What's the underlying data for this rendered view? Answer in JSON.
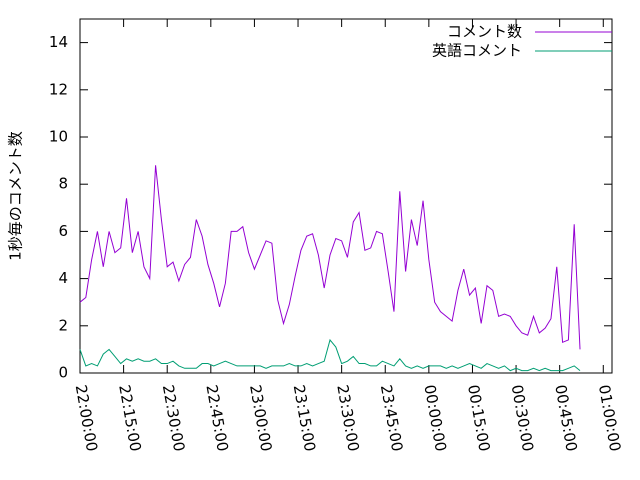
{
  "chart_data": {
    "type": "line",
    "y_label": "1秒毎のコメント数",
    "x": [
      0,
      2,
      4,
      6,
      8,
      10,
      12,
      14,
      16,
      18,
      20,
      22,
      24,
      26,
      28,
      30,
      32,
      34,
      36,
      38,
      40,
      42,
      44,
      46,
      48,
      50,
      52,
      54,
      56,
      58,
      60,
      62,
      64,
      66,
      68,
      70,
      72,
      74,
      76,
      78,
      80,
      82,
      84,
      86,
      88,
      90,
      92,
      94,
      96,
      98,
      100,
      102,
      104,
      106,
      108,
      110,
      112,
      114,
      116,
      118,
      120,
      122,
      124,
      126,
      128,
      130,
      132,
      134,
      136,
      138,
      140,
      142,
      144,
      146,
      148,
      150,
      152,
      154,
      156,
      158,
      160,
      162,
      164,
      166,
      168,
      170,
      172
    ],
    "series": [
      {
        "name": "コメント数",
        "color": "#9400d3",
        "values": [
          3.0,
          3.2,
          4.8,
          6.0,
          4.5,
          6.0,
          5.1,
          5.3,
          7.4,
          5.1,
          6.0,
          4.5,
          4.0,
          8.8,
          6.5,
          4.5,
          4.7,
          3.9,
          4.6,
          4.9,
          6.5,
          5.8,
          4.6,
          3.8,
          2.8,
          3.8,
          6.0,
          6.0,
          6.2,
          5.1,
          4.4,
          5.0,
          5.6,
          5.5,
          3.1,
          2.1,
          2.9,
          4.1,
          5.2,
          5.8,
          5.9,
          5.0,
          3.6,
          5.0,
          5.7,
          5.6,
          4.9,
          6.4,
          6.8,
          5.2,
          5.3,
          6.0,
          5.9,
          4.3,
          2.6,
          7.7,
          4.3,
          6.5,
          5.4,
          7.3,
          4.8,
          3.0,
          2.6,
          2.4,
          2.2,
          3.5,
          4.4,
          3.3,
          3.6,
          2.1,
          3.7,
          3.5,
          2.4,
          2.5,
          2.4,
          2.0,
          1.7,
          1.6,
          2.4,
          1.7,
          1.9,
          2.3,
          4.5,
          1.3,
          1.4,
          6.3,
          1.0
        ]
      },
      {
        "name": "英語コメント",
        "color": "#009e73",
        "values": [
          1.0,
          0.3,
          0.4,
          0.3,
          0.8,
          1.0,
          0.7,
          0.4,
          0.6,
          0.5,
          0.6,
          0.5,
          0.5,
          0.6,
          0.4,
          0.4,
          0.5,
          0.3,
          0.2,
          0.2,
          0.2,
          0.4,
          0.4,
          0.3,
          0.4,
          0.5,
          0.4,
          0.3,
          0.3,
          0.3,
          0.3,
          0.3,
          0.2,
          0.3,
          0.3,
          0.3,
          0.4,
          0.3,
          0.3,
          0.4,
          0.3,
          0.4,
          0.5,
          1.4,
          1.1,
          0.4,
          0.5,
          0.7,
          0.4,
          0.4,
          0.3,
          0.3,
          0.5,
          0.4,
          0.3,
          0.6,
          0.3,
          0.2,
          0.3,
          0.2,
          0.3,
          0.3,
          0.3,
          0.2,
          0.3,
          0.2,
          0.3,
          0.4,
          0.3,
          0.2,
          0.4,
          0.3,
          0.2,
          0.3,
          0.1,
          0.2,
          0.1,
          0.1,
          0.2,
          0.1,
          0.2,
          0.1,
          0.1,
          0.1,
          0.2,
          0.3,
          0.1
        ]
      }
    ],
    "xlim": [
      0,
      183
    ],
    "xticks": [
      {
        "value": 0,
        "label": "22:00:00"
      },
      {
        "value": 15,
        "label": "22:15:00"
      },
      {
        "value": 30,
        "label": "22:30:00"
      },
      {
        "value": 45,
        "label": "22:45:00"
      },
      {
        "value": 60,
        "label": "23:00:00"
      },
      {
        "value": 75,
        "label": "23:15:00"
      },
      {
        "value": 90,
        "label": "23:30:00"
      },
      {
        "value": 105,
        "label": "23:45:00"
      },
      {
        "value": 120,
        "label": "00:00:00"
      },
      {
        "value": 135,
        "label": "00:15:00"
      },
      {
        "value": 150,
        "label": "00:30:00"
      },
      {
        "value": 165,
        "label": "00:45:00"
      },
      {
        "value": 180,
        "label": "01:00:00"
      }
    ],
    "ylim": [
      0,
      15
    ],
    "yticks": [
      0,
      2,
      4,
      6,
      8,
      10,
      12,
      14
    ],
    "legend": "top-right"
  }
}
